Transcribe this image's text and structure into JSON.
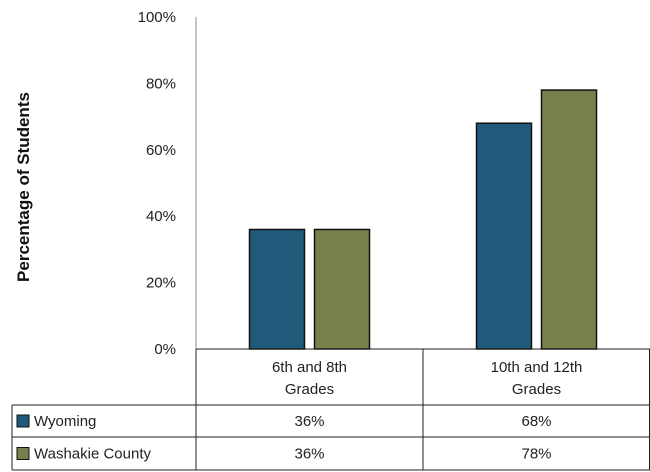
{
  "chart_data": {
    "type": "bar",
    "title": "",
    "xlabel": "",
    "ylabel": "Percentage of Students",
    "ylim": [
      0,
      100
    ],
    "y_ticks": [
      "0%",
      "20%",
      "40%",
      "60%",
      "80%",
      "100%"
    ],
    "categories": [
      "6th and 8th Grades",
      "10th and 12th Grades"
    ],
    "category_lines": [
      [
        "6th and 8th",
        "Grades"
      ],
      [
        "10th and 12th",
        "Grades"
      ]
    ],
    "series": [
      {
        "name": "Wyoming",
        "values": [
          36,
          68
        ],
        "labels": [
          "36%",
          "68%"
        ],
        "color": "#1f5a7a"
      },
      {
        "name": "Washakie County",
        "values": [
          36,
          78
        ],
        "labels": [
          "36%",
          "78%"
        ],
        "color": "#77804d"
      }
    ],
    "legend": "data-table-bottom",
    "grid": false
  }
}
